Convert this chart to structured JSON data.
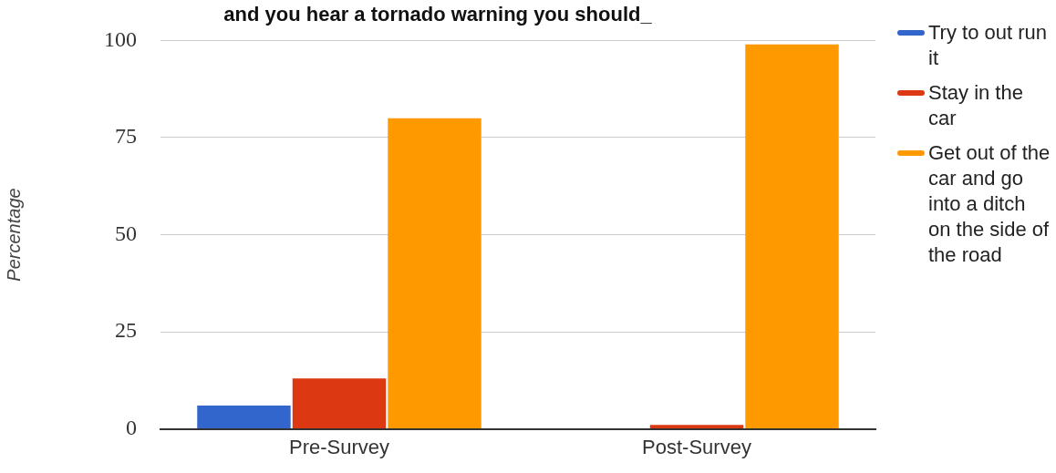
{
  "chart_data": {
    "type": "bar",
    "title": "and you hear a tornado warning you should_",
    "ylabel": "Percentage",
    "categories": [
      "Pre-Survey",
      "Post-Survey"
    ],
    "series": [
      {
        "name": "Try to out run it",
        "color": "#3366cc",
        "values": [
          6,
          0
        ]
      },
      {
        "name": "Stay in the car",
        "color": "#dc3912",
        "values": [
          13,
          1
        ]
      },
      {
        "name": "Get out of the car and go into a ditch on the side of the road",
        "color": "#ff9900",
        "values": [
          80,
          99
        ]
      }
    ],
    "ylim": [
      0,
      100
    ],
    "yticks": [
      0,
      25,
      50,
      75,
      100
    ],
    "grid": "y",
    "legend": "right"
  }
}
